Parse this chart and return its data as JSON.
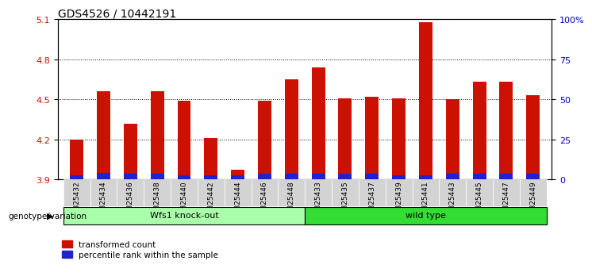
{
  "title": "GDS4526 / 10442191",
  "samples": [
    "GSM825432",
    "GSM825434",
    "GSM825436",
    "GSM825438",
    "GSM825440",
    "GSM825442",
    "GSM825444",
    "GSM825446",
    "GSM825448",
    "GSM825433",
    "GSM825435",
    "GSM825437",
    "GSM825439",
    "GSM825441",
    "GSM825443",
    "GSM825445",
    "GSM825447",
    "GSM825449"
  ],
  "red_values": [
    4.2,
    4.56,
    4.32,
    4.56,
    4.49,
    4.21,
    3.97,
    4.49,
    4.65,
    4.74,
    4.51,
    4.52,
    4.51,
    5.08,
    4.5,
    4.63,
    4.63,
    4.53
  ],
  "blue_values": [
    3.93,
    3.95,
    3.94,
    3.94,
    3.93,
    3.93,
    3.93,
    3.94,
    3.94,
    3.94,
    3.94,
    3.94,
    3.93,
    3.93,
    3.94,
    3.94,
    3.94,
    3.94
  ],
  "ymin": 3.9,
  "ymax": 5.1,
  "yticks_left": [
    3.9,
    4.2,
    4.5,
    4.8,
    5.1
  ],
  "ytick_labels_right": [
    "0",
    "25",
    "50",
    "75",
    "100%"
  ],
  "right_tick_positions": [
    3.9,
    4.2,
    4.5,
    4.8,
    5.1
  ],
  "groups": [
    {
      "label": "Wfs1 knock-out",
      "start": 0,
      "end": 9,
      "color": "#AAFFAA"
    },
    {
      "label": "wild type",
      "start": 9,
      "end": 18,
      "color": "#33DD33"
    }
  ],
  "bar_color_red": "#CC1100",
  "bar_color_blue": "#2222CC",
  "bar_width": 0.5,
  "background_color": "#FFFFFF",
  "tick_label_color_left": "#CC1100",
  "tick_label_color_right": "#0000CC",
  "xlabel_bg": "#D3D3D3",
  "legend_label1": "transformed count",
  "legend_label2": "percentile rank within the sample",
  "genotype_label": "genotype/variation"
}
